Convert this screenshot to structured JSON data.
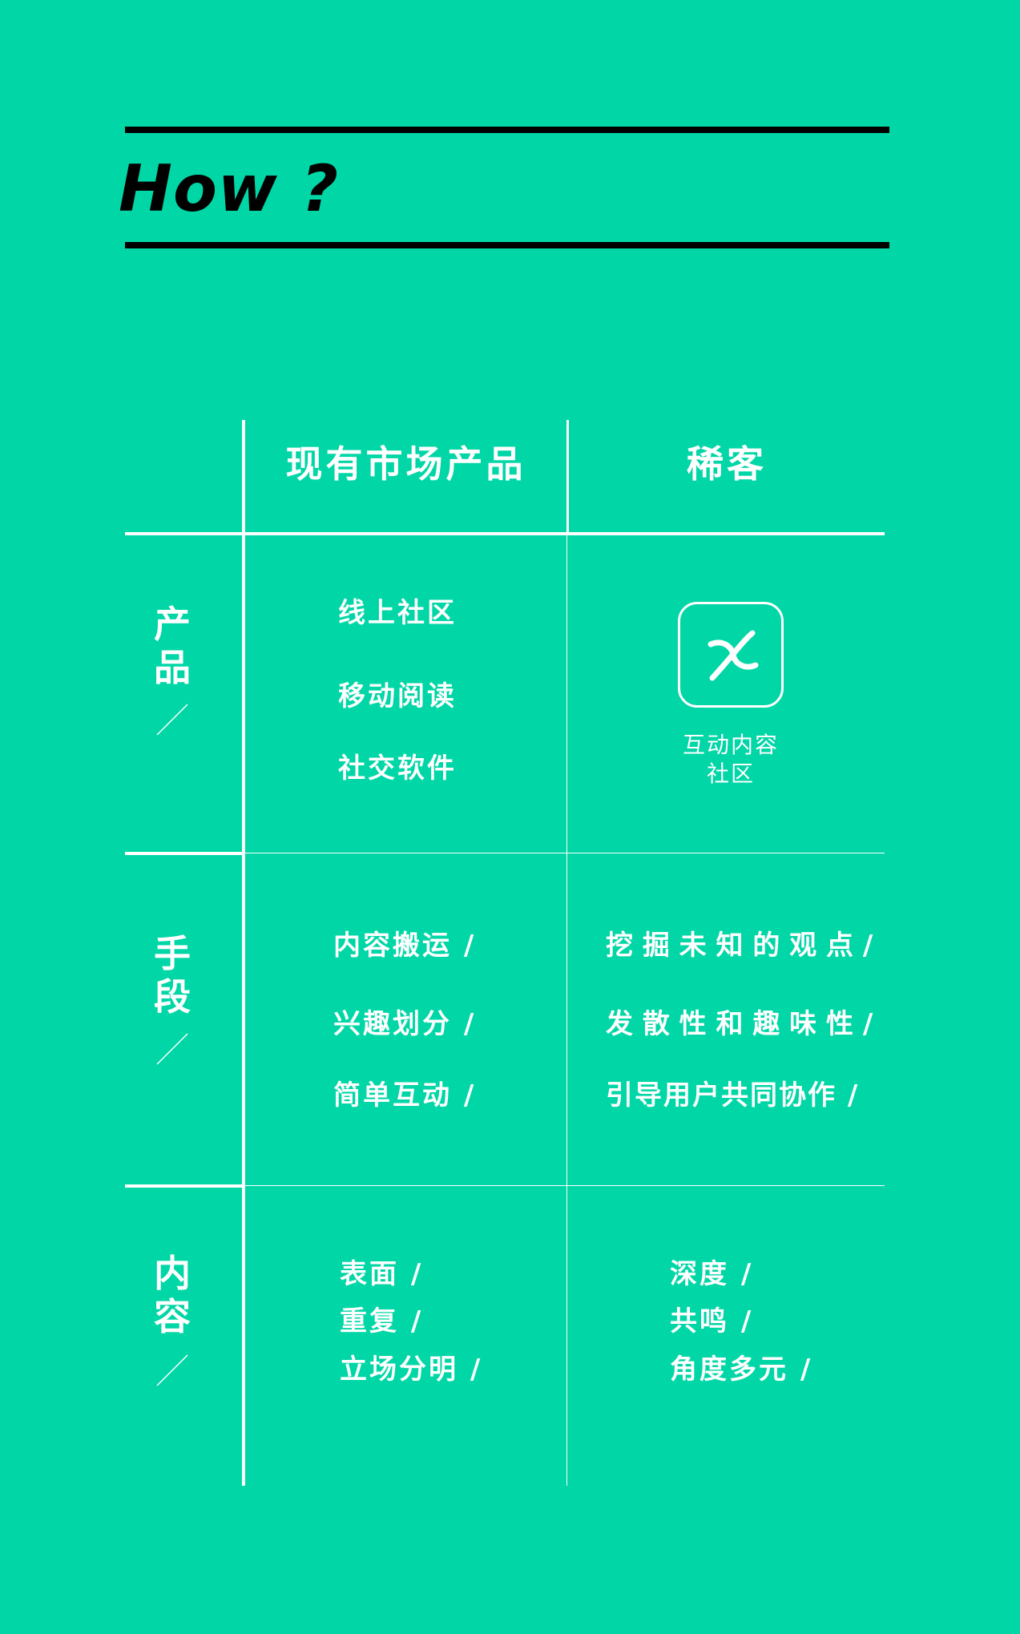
{
  "title": "How ?",
  "table": {
    "col_headers": [
      "现有市场产品",
      "稀客"
    ],
    "rows": [
      {
        "label": [
          "产",
          "品"
        ],
        "market": [
          "线上社区",
          "移动阅读",
          "社交软件"
        ],
        "xike": {
          "icon": "xike-logo-icon",
          "caption": [
            "互动内容",
            "社区"
          ]
        }
      },
      {
        "label": [
          "手",
          "段"
        ],
        "market": [
          "内容搬运 /",
          "兴趣划分 /",
          "简单互动 /"
        ],
        "xike": [
          "挖 掘 未 知 的 观 点  /",
          "发 散 性 和 趣 味 性  /",
          "引导用户共同协作 /"
        ]
      },
      {
        "label": [
          "内",
          "容"
        ],
        "market": [
          "表面 /",
          "重复 /",
          "立场分明 /"
        ],
        "xike": [
          "深度 /",
          "共鸣 /",
          "角度多元 /"
        ]
      }
    ]
  },
  "colors": {
    "background": "#00D6A6",
    "rules": "#000000",
    "text": "#FFFFFF"
  }
}
